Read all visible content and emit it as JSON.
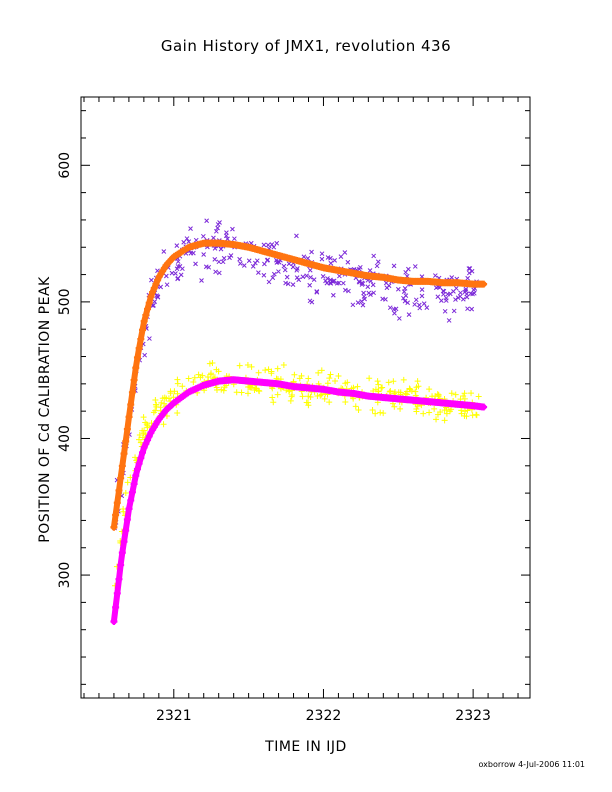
{
  "chart_data": {
    "type": "scatter",
    "title": "Gain History of JMX1, revolution 436",
    "xlabel": "TIME IN IJD",
    "ylabel": "POSITION OF Cd CALIBRATION PEAK",
    "xlim": [
      2320.38,
      2323.38
    ],
    "ylim": [
      210,
      650
    ],
    "xticks": [
      2321,
      2322,
      2323
    ],
    "yticks": [
      300,
      400,
      500,
      600
    ],
    "grid": false,
    "legend": "none",
    "series": [
      {
        "kind": "scatter-x",
        "color": "#7b28d8",
        "x": [
          2320.6,
          2320.65,
          2320.7,
          2320.75,
          2320.8,
          2320.85,
          2320.9,
          2320.95,
          2321.0,
          2321.1,
          2321.2,
          2321.3,
          2321.4,
          2321.5,
          2321.6,
          2321.7,
          2321.8,
          2321.9,
          2322.0,
          2322.1,
          2322.2,
          2322.3,
          2322.4,
          2322.5,
          2322.6,
          2322.7,
          2322.8,
          2322.9,
          2323.0,
          2323.05
        ],
        "y": [
          340,
          375,
          410,
          445,
          475,
          500,
          512,
          522,
          528,
          535,
          538,
          540,
          538,
          536,
          533,
          530,
          527,
          524,
          521,
          518,
          516,
          514,
          512,
          510,
          509,
          508,
          507,
          507,
          507,
          508
        ],
        "spread": 14
      },
      {
        "kind": "fit-line",
        "color": "#ff7410",
        "x": [
          2320.6,
          2320.65,
          2320.7,
          2320.75,
          2320.8,
          2320.85,
          2320.9,
          2320.95,
          2321.0,
          2321.1,
          2321.2,
          2321.3,
          2321.4,
          2321.5,
          2321.6,
          2321.7,
          2321.8,
          2321.9,
          2322.0,
          2322.1,
          2322.2,
          2322.3,
          2322.4,
          2322.5,
          2322.6,
          2322.7,
          2322.8,
          2322.9,
          2323.0,
          2323.07
        ],
        "y": [
          335,
          375,
          415,
          455,
          485,
          505,
          518,
          527,
          533,
          540,
          543,
          543,
          542,
          540,
          537,
          534,
          531,
          528,
          525,
          523,
          521,
          519,
          518,
          516,
          515,
          515,
          514,
          514,
          513,
          513
        ]
      },
      {
        "kind": "scatter-plus",
        "color": "#ffff00",
        "x": [
          2320.6,
          2320.65,
          2320.7,
          2320.75,
          2320.8,
          2320.85,
          2320.9,
          2320.95,
          2321.0,
          2321.1,
          2321.2,
          2321.3,
          2321.4,
          2321.5,
          2321.6,
          2321.7,
          2321.8,
          2321.9,
          2322.0,
          2322.1,
          2322.2,
          2322.3,
          2322.4,
          2322.5,
          2322.6,
          2322.7,
          2322.8,
          2322.9,
          2323.0,
          2323.05
        ],
        "y": [
          282,
          330,
          365,
          388,
          403,
          413,
          420,
          425,
          430,
          436,
          441,
          443,
          443,
          441,
          440,
          439,
          438,
          437,
          436,
          435,
          433,
          432,
          431,
          430,
          429,
          427,
          426,
          425,
          423,
          422
        ],
        "spread": 9
      },
      {
        "kind": "fit-line",
        "color": "#ff00ff",
        "x": [
          2320.6,
          2320.65,
          2320.7,
          2320.75,
          2320.8,
          2320.85,
          2320.9,
          2320.95,
          2321.0,
          2321.1,
          2321.2,
          2321.3,
          2321.4,
          2321.5,
          2321.6,
          2321.7,
          2321.8,
          2321.9,
          2322.0,
          2322.1,
          2322.2,
          2322.3,
          2322.4,
          2322.5,
          2322.6,
          2322.7,
          2322.8,
          2322.9,
          2323.0,
          2323.07
        ],
        "y": [
          266,
          312,
          348,
          375,
          393,
          405,
          414,
          421,
          426,
          434,
          439,
          442,
          443,
          442,
          441,
          440,
          438,
          437,
          436,
          434,
          433,
          431,
          430,
          429,
          428,
          427,
          426,
          425,
          424,
          423
        ]
      }
    ]
  },
  "footer": "oxborrow  4-Jul-2006 11:01"
}
